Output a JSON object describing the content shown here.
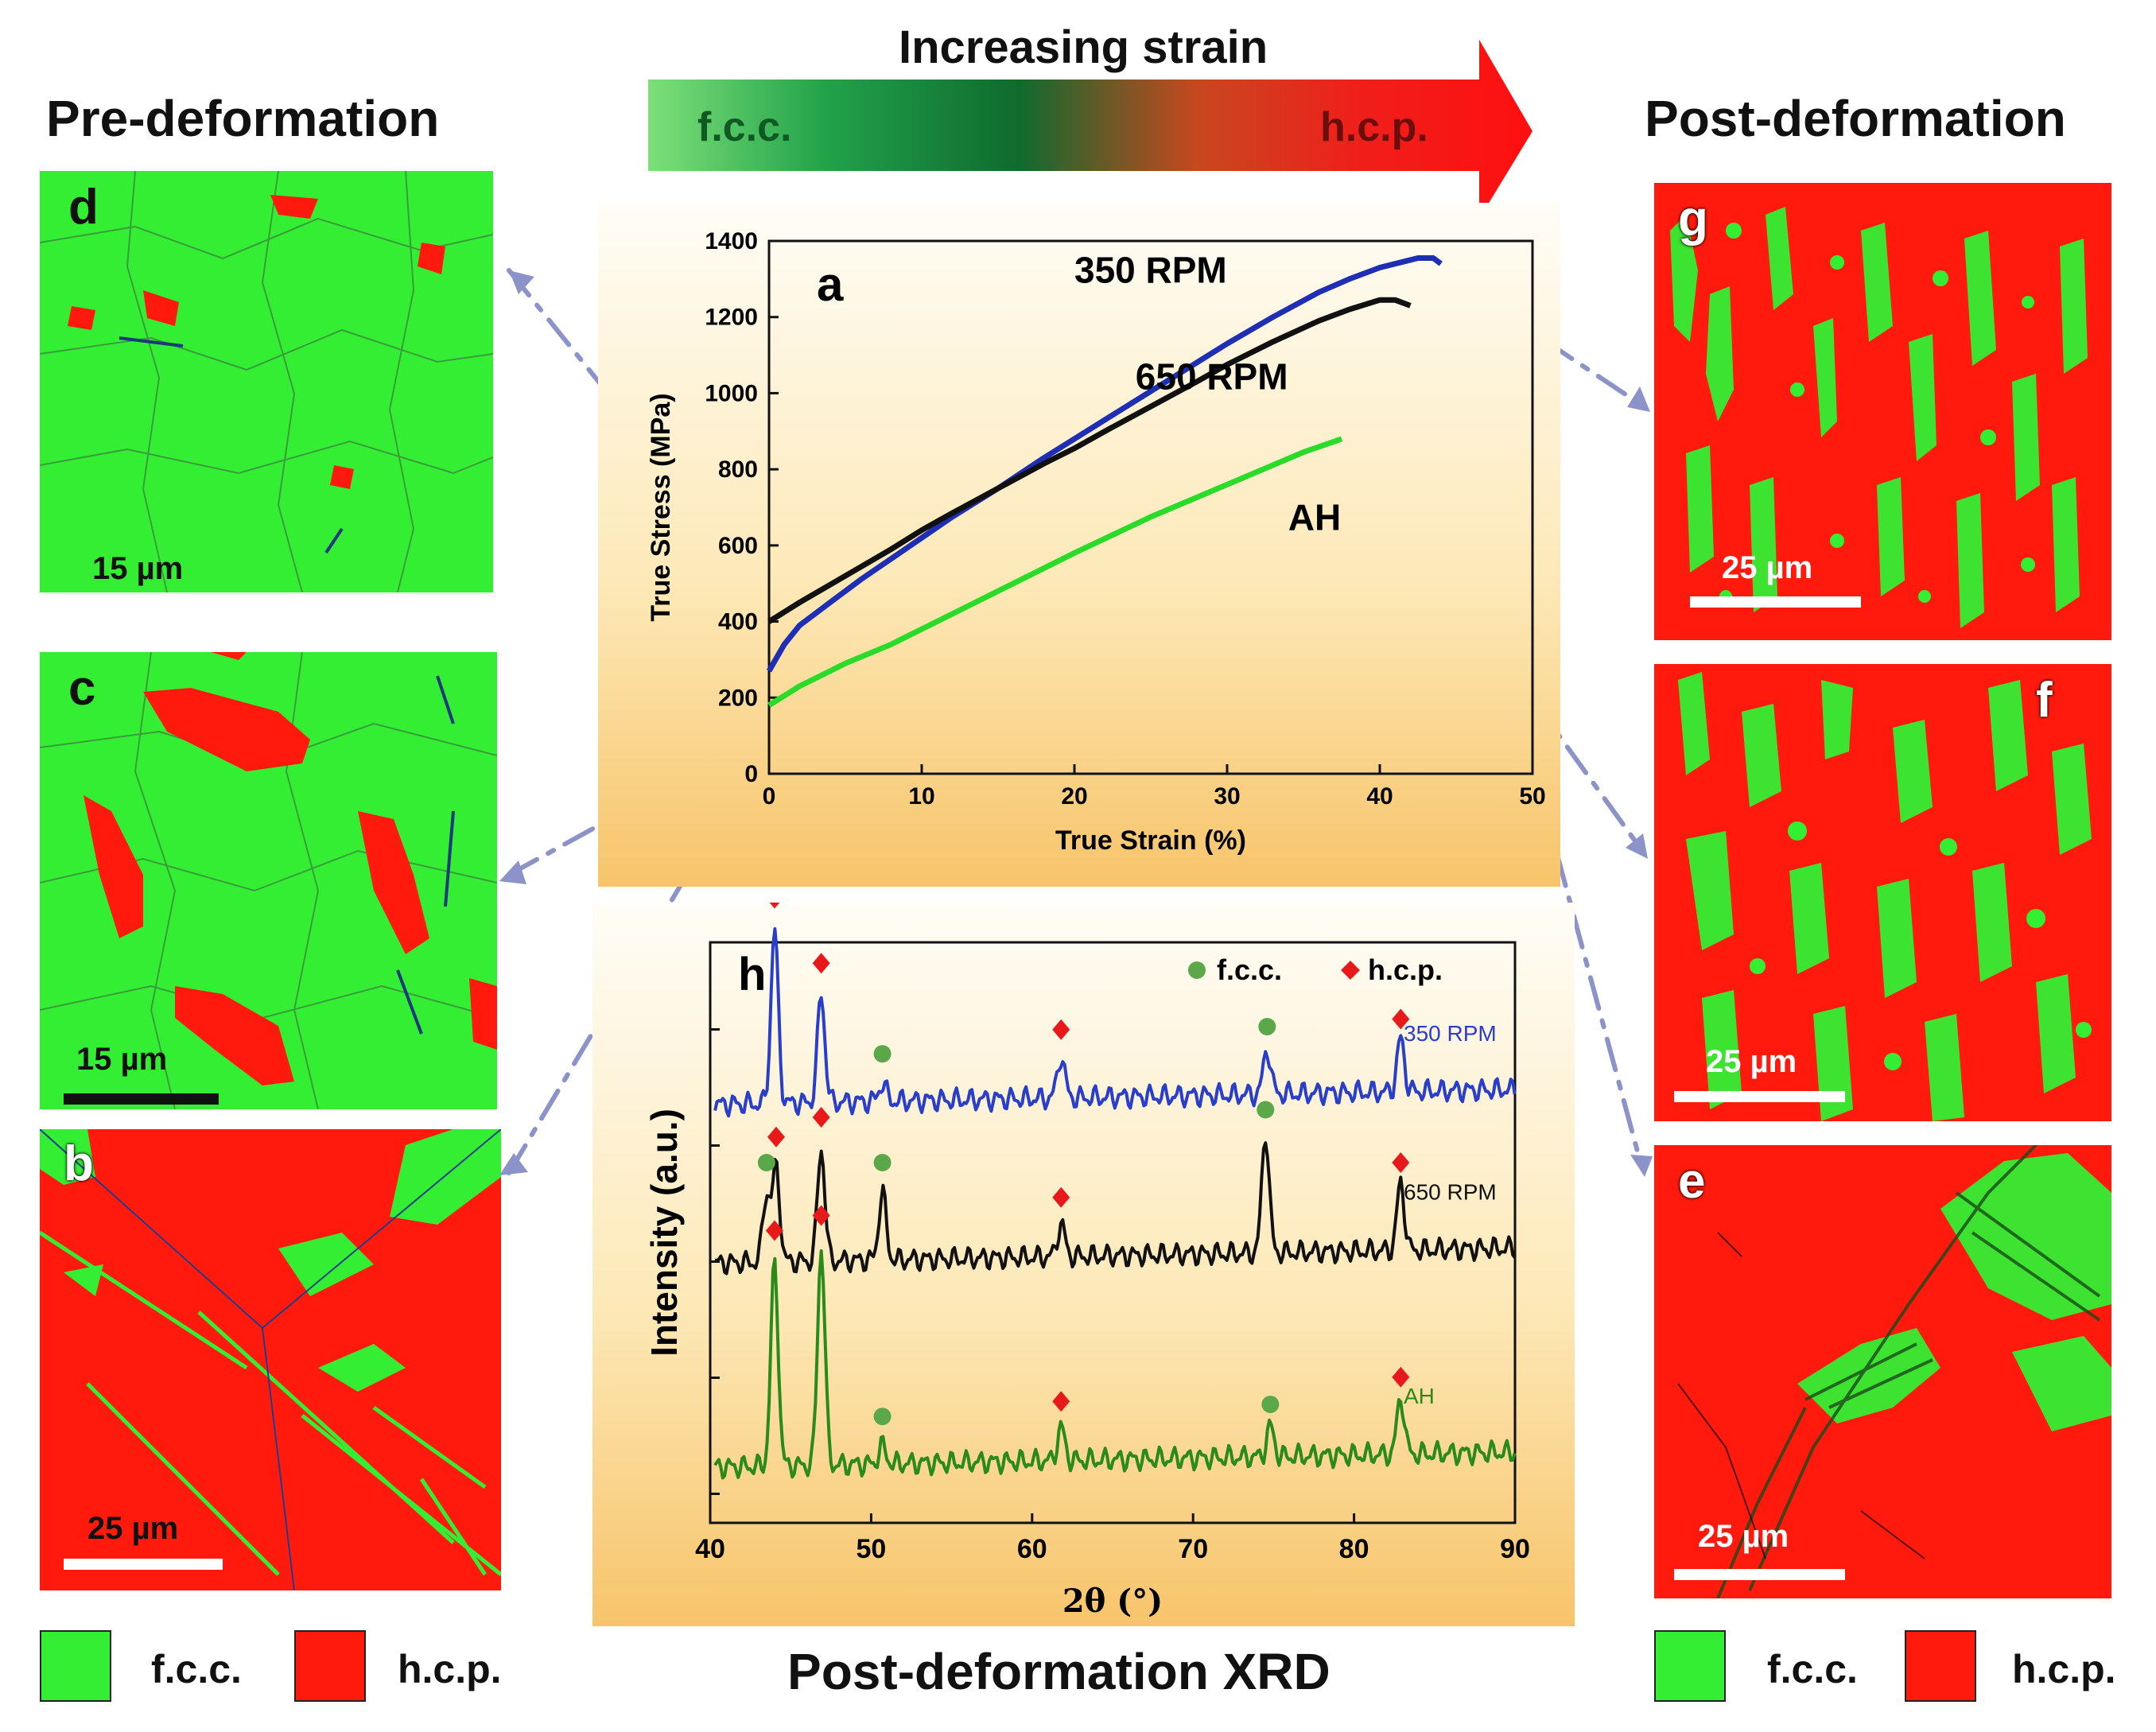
{
  "header": {
    "strain_label": "Increasing strain",
    "arrow_left": "f.c.c.",
    "arrow_right": "h.c.p."
  },
  "left": {
    "title": "Pre-deformation",
    "panels": [
      {
        "letter": "d",
        "scale": "15 µm"
      },
      {
        "letter": "c",
        "scale": "15 µm"
      },
      {
        "letter": "b",
        "scale": "25 µm"
      }
    ]
  },
  "right": {
    "title": "Post-deformation",
    "panels": [
      {
        "letter": "g",
        "scale": "25 µm"
      },
      {
        "letter": "f",
        "scale": "25 µm"
      },
      {
        "letter": "e",
        "scale": "25 µm"
      }
    ]
  },
  "legend": {
    "fcc": "f.c.c.",
    "hcp": "h.c.p.",
    "fcc_color": "#33ee33",
    "hcp_color": "#ff1a0d"
  },
  "footer_title": "Post-deformation XRD",
  "chart_data": [
    {
      "type": "line",
      "panel": "a",
      "title": "",
      "xlabel": "True Strain (%)",
      "ylabel": "True Stress (MPa)",
      "xlim": [
        0,
        50
      ],
      "ylim": [
        0,
        1400
      ],
      "xticks": [
        0,
        10,
        20,
        30,
        40,
        50
      ],
      "yticks": [
        0,
        200,
        400,
        600,
        800,
        1000,
        1200,
        1400
      ],
      "series": [
        {
          "name": "350 RPM",
          "color": "#1f2fb5",
          "x": [
            0,
            1,
            2,
            4,
            6,
            8,
            10,
            12,
            15,
            18,
            20,
            22,
            25,
            28,
            30,
            33,
            36,
            38,
            40,
            41.5,
            42.5,
            43.5,
            44
          ],
          "y": [
            270,
            340,
            390,
            450,
            510,
            565,
            620,
            675,
            750,
            830,
            880,
            930,
            1005,
            1080,
            1130,
            1200,
            1265,
            1300,
            1330,
            1345,
            1355,
            1355,
            1340
          ]
        },
        {
          "name": "650 RPM",
          "color": "#111111",
          "x": [
            0,
            2,
            5,
            8,
            10,
            12,
            15,
            18,
            20,
            22,
            25,
            28,
            30,
            33,
            36,
            38,
            40,
            41,
            42
          ],
          "y": [
            400,
            450,
            520,
            590,
            640,
            685,
            750,
            815,
            855,
            900,
            965,
            1030,
            1075,
            1135,
            1190,
            1220,
            1245,
            1245,
            1230
          ]
        },
        {
          "name": "AH",
          "color": "#2adb2a",
          "x": [
            0,
            2,
            5,
            8,
            10,
            15,
            20,
            25,
            30,
            35,
            37.5
          ],
          "y": [
            180,
            230,
            290,
            340,
            380,
            480,
            580,
            675,
            760,
            845,
            880
          ]
        }
      ],
      "annotations": [
        "350 RPM",
        "650 RPM",
        "AH"
      ]
    },
    {
      "type": "line",
      "panel": "h",
      "xlabel": "2θ (°)",
      "ylabel": "Intensity (a.u.)",
      "xlim": [
        40,
        90
      ],
      "xticks": [
        40,
        50,
        60,
        70,
        80,
        90
      ],
      "legend": [
        "f.c.c.",
        "h.c.p."
      ],
      "legend_colors": {
        "f.c.c.": "#5aa84a",
        "h.c.p.": "#e8191b"
      },
      "series": [
        {
          "name": "350 RPM",
          "color": "#2a3fc9",
          "offset": 2.0,
          "peaks": [
            [
              44.0,
              1.15,
              "hcp"
            ],
            [
              46.9,
              0.72,
              "hcp"
            ],
            [
              50.7,
              0.12,
              "fcc"
            ],
            [
              61.8,
              0.28,
              "hcp"
            ],
            [
              74.6,
              0.3,
              "fcc"
            ],
            [
              82.9,
              0.35,
              "hcp"
            ]
          ]
        },
        {
          "name": "650 RPM",
          "color": "#111111",
          "offset": 1.0,
          "peaks": [
            [
              43.5,
              0.45,
              "fcc"
            ],
            [
              44.1,
              0.62,
              "hcp"
            ],
            [
              46.9,
              0.75,
              "hcp"
            ],
            [
              50.7,
              0.45,
              "fcc"
            ],
            [
              61.8,
              0.22,
              "hcp"
            ],
            [
              74.5,
              0.8,
              "fcc"
            ],
            [
              82.9,
              0.45,
              "hcp"
            ]
          ]
        },
        {
          "name": "AH",
          "color": "#2a8a1a",
          "offset": 0.0,
          "peaks": [
            [
              44.0,
              1.35,
              "hcp"
            ],
            [
              46.9,
              1.45,
              "hcp"
            ],
            [
              50.7,
              0.12,
              "fcc"
            ],
            [
              61.8,
              0.22,
              "hcp"
            ],
            [
              74.8,
              0.2,
              "fcc"
            ],
            [
              82.9,
              0.38,
              "hcp"
            ]
          ]
        }
      ],
      "series_labels": [
        "350 RPM",
        "650  RPM",
        "AH"
      ]
    }
  ]
}
